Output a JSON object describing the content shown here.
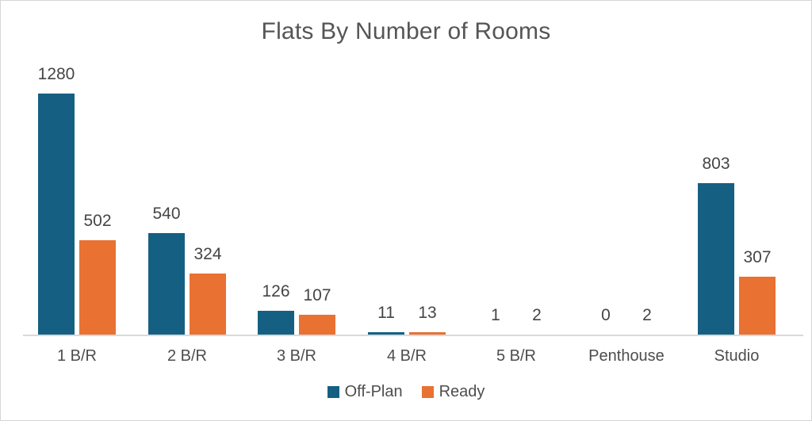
{
  "chart_data": {
    "type": "bar",
    "title": "Flats By Number of Rooms",
    "categories": [
      "1 B/R",
      "2 B/R",
      "3 B/R",
      "4 B/R",
      "5 B/R",
      "Penthouse",
      "Studio"
    ],
    "series": [
      {
        "name": "Off-Plan",
        "color": "#156082",
        "values": [
          1280,
          540,
          126,
          11,
          1,
          0,
          803
        ]
      },
      {
        "name": "Ready",
        "color": "#E97132",
        "values": [
          502,
          324,
          107,
          13,
          2,
          2,
          307
        ]
      }
    ],
    "ylim": [
      0,
      1280
    ],
    "grid": false,
    "axis_visible": false,
    "data_labels": true,
    "legend_position": "bottom"
  },
  "colors": {
    "off_plan": "#156082",
    "ready": "#E97132",
    "axis_line": "#d9d9d9",
    "title_text": "#555555",
    "label_text": "#454545"
  }
}
